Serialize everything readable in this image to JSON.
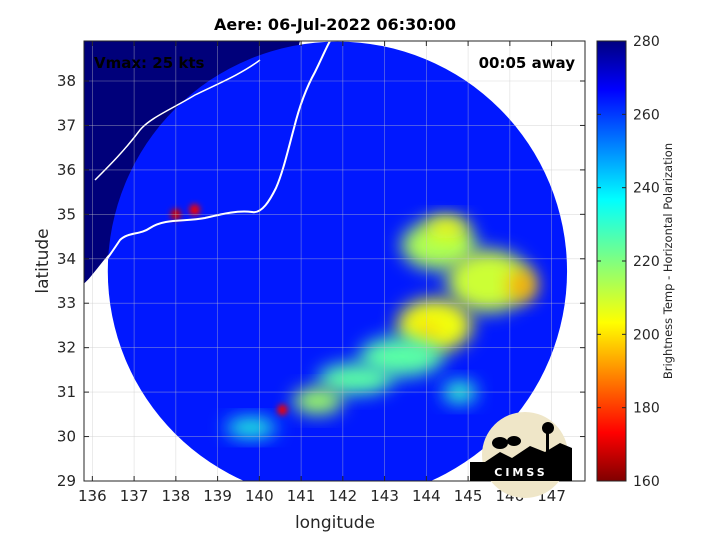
{
  "chart_data": {
    "type": "heatmap",
    "title": "Aere: 06-Jul-2022 06:30:00",
    "xlabel": "longitude",
    "ylabel": "latitude",
    "xlim": [
      135.8,
      147.8
    ],
    "ylim": [
      29,
      38.9
    ],
    "xticks": [
      "136",
      "137",
      "138",
      "139",
      "140",
      "141",
      "142",
      "143",
      "144",
      "145",
      "146",
      "147"
    ],
    "yticks": [
      "29",
      "30",
      "31",
      "32",
      "33",
      "34",
      "35",
      "36",
      "37",
      "38"
    ],
    "annotations": {
      "vmax": "Vmax: 25 kts",
      "time_away": "00:05 away"
    },
    "grid": true,
    "swath": {
      "center_lon": 141.87,
      "center_lat": 33.72,
      "radius_deg": 5.5
    },
    "colorbar": {
      "label": "Brightness Temp - Horizontal Polarization",
      "range": [
        160,
        280
      ],
      "ticks": [
        "160",
        "180",
        "200",
        "220",
        "240",
        "260",
        "280"
      ],
      "colormap": "jet"
    },
    "background_temp": 264,
    "cold_features": [
      {
        "lon": 144.3,
        "lat": 34.3,
        "rx": 0.9,
        "ry": 0.55,
        "value": 214
      },
      {
        "lon": 144.5,
        "lat": 34.7,
        "rx": 0.5,
        "ry": 0.25,
        "value": 205
      },
      {
        "lon": 145.5,
        "lat": 33.5,
        "rx": 1.0,
        "ry": 0.7,
        "value": 210
      },
      {
        "lon": 146.3,
        "lat": 33.4,
        "rx": 0.35,
        "ry": 0.35,
        "value": 194
      },
      {
        "lon": 144.2,
        "lat": 32.5,
        "rx": 0.9,
        "ry": 0.6,
        "value": 205
      },
      {
        "lon": 144.0,
        "lat": 32.3,
        "rx": 0.3,
        "ry": 0.25,
        "value": 198
      },
      {
        "lon": 143.4,
        "lat": 31.8,
        "rx": 1.0,
        "ry": 0.45,
        "value": 225
      },
      {
        "lon": 142.3,
        "lat": 31.3,
        "rx": 0.9,
        "ry": 0.35,
        "value": 225
      },
      {
        "lon": 141.4,
        "lat": 30.8,
        "rx": 0.6,
        "ry": 0.3,
        "value": 216
      },
      {
        "lon": 139.8,
        "lat": 30.2,
        "rx": 0.6,
        "ry": 0.22,
        "value": 232
      },
      {
        "lon": 140.55,
        "lat": 30.6,
        "rx": 0.12,
        "ry": 0.12,
        "value": 172
      },
      {
        "lon": 138.0,
        "lat": 35.0,
        "rx": 0.13,
        "ry": 0.13,
        "value": 168
      },
      {
        "lon": 138.45,
        "lat": 35.1,
        "rx": 0.13,
        "ry": 0.13,
        "value": 172
      },
      {
        "lon": 144.8,
        "lat": 31.0,
        "rx": 0.4,
        "ry": 0.25,
        "value": 230
      }
    ],
    "logo": "CIMSS"
  }
}
